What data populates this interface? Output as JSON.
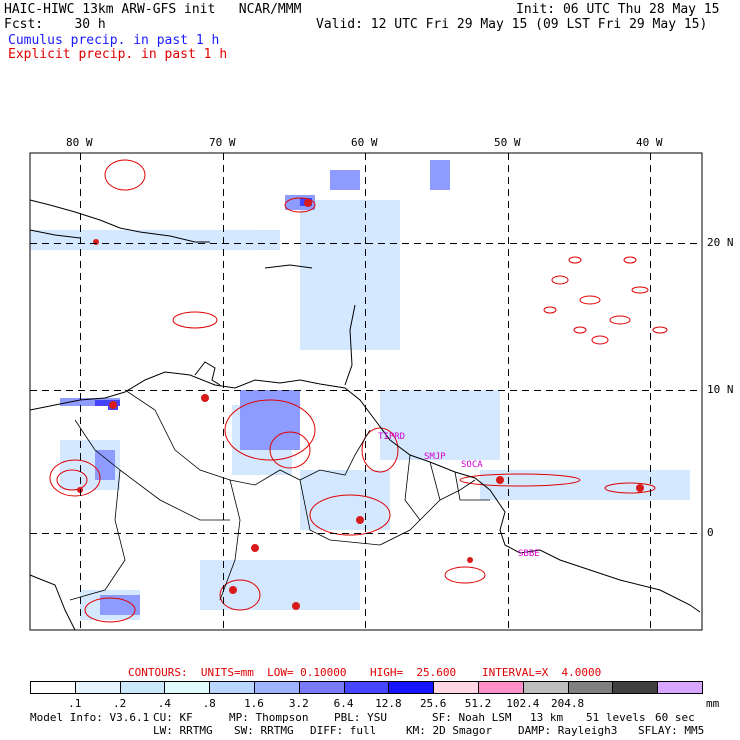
{
  "header": {
    "title": "HAIC-HIWC 13km ARW-GFS init   NCAR/MMM",
    "init": "Init: 06 UTC Thu 28 May 15",
    "fcst": "Fcst:    30 h",
    "valid": "Valid: 12 UTC Fri 29 May 15 (09 LST Fri 29 May 15)",
    "cumulus": "Cumulus precip. in past 1 h",
    "explicit": "Explicit precip. in past 1 h"
  },
  "map": {
    "lon_labels": [
      "80 W",
      "70 W",
      "60 W",
      "50 W",
      "40 W"
    ],
    "lat_labels": [
      "20 N",
      "10 N",
      "0"
    ],
    "sites": [
      "TIPRD",
      "SMJP",
      "SOCA",
      "SBBE"
    ]
  },
  "contours": {
    "prefix": "CONTOURS:  UNITS=mm  LOW= 0.10000",
    "high": "HIGH=  25.600",
    "interval": "INTERVAL=X  4.0000"
  },
  "colorbar": {
    "unit": "mm",
    "colors": [
      "#ffffff",
      "#e6f4ff",
      "#cce9fb",
      "#e0fbfb",
      "#b8d6ff",
      "#9fb4ff",
      "#7a7aff",
      "#4646ff",
      "#1414ff",
      "#ffd6e6",
      "#ff8fc8",
      "#bebebe",
      "#808080",
      "#404040",
      "#d9a6ff"
    ],
    "labels": [
      ".1",
      ".2",
      ".4",
      ".8",
      "1.6",
      "3.2",
      "6.4",
      "12.8",
      "25.6",
      "51.2",
      "102.4",
      "204.8"
    ]
  },
  "footer": {
    "line1": [
      "Model Info: V3.6.1",
      "CU: KF",
      "MP: Thompson",
      "PBL: YSU",
      "SF: Noah LSM",
      "13 km",
      "51 levels",
      "60 sec"
    ],
    "line2": [
      "LW: RRTMG",
      "SW: RRTMG",
      "DIFF: full",
      "KM: 2D Smagor",
      "DAMP: Rayleigh3",
      "SFLAY: MM5"
    ]
  }
}
